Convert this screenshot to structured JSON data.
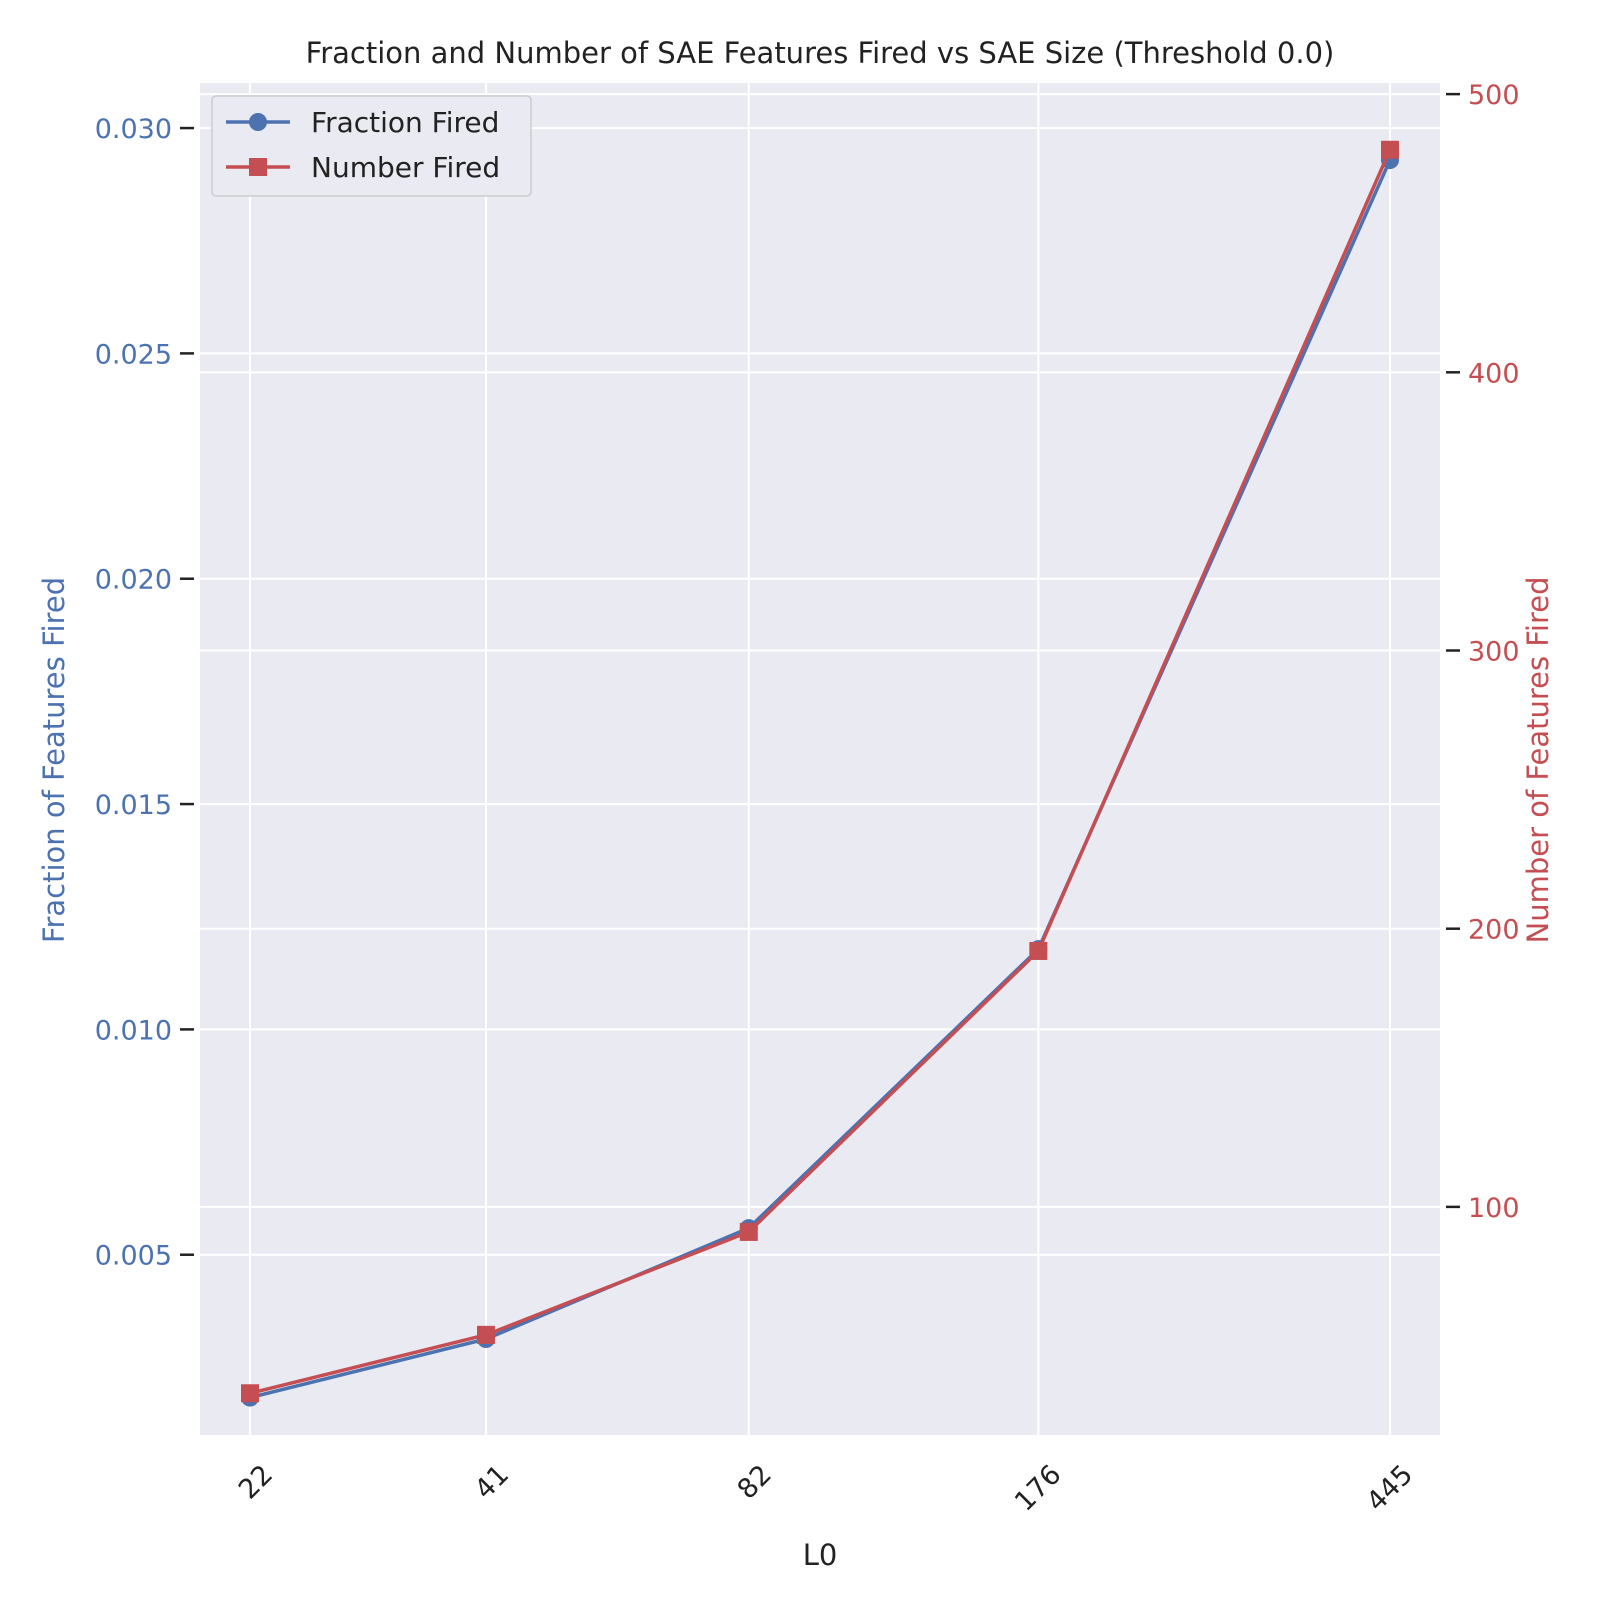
{
  "chart_data": {
    "type": "line",
    "title": "Fraction and Number of SAE Features Fired vs SAE Size (Threshold 0.0)",
    "xlabel": "L0",
    "categories": [
      "22",
      "41",
      "82",
      "176",
      "445"
    ],
    "x": [
      22,
      41,
      82,
      176,
      445
    ],
    "x_scale": "log",
    "y_left": {
      "label": "Fraction of Features Fired",
      "ticks": [
        "0.005",
        "0.010",
        "0.015",
        "0.020",
        "0.025",
        "0.030"
      ],
      "tick_values": [
        0.005,
        0.01,
        0.015,
        0.02,
        0.025,
        0.03
      ],
      "range": [
        0.001,
        0.031
      ],
      "color": "#4c72b0"
    },
    "y_right": {
      "label": "Number of Features Fired",
      "ticks": [
        "100",
        "200",
        "300",
        "400",
        "500"
      ],
      "tick_values": [
        100,
        200,
        300,
        400,
        500
      ],
      "range": [
        18,
        504
      ],
      "color": "#c44e52"
    },
    "series": [
      {
        "name": "Fraction Fired",
        "axis": "left",
        "marker": "circle",
        "color": "#4c72b0",
        "values": [
          0.00183,
          0.00313,
          0.00559,
          0.01178,
          0.02929
        ]
      },
      {
        "name": "Number Fired",
        "axis": "right",
        "marker": "square",
        "color": "#c44e52",
        "values": [
          33,
          54,
          91,
          192,
          480
        ]
      }
    ],
    "legend": "top-left",
    "grid": true,
    "background": "#eaeaf2"
  }
}
